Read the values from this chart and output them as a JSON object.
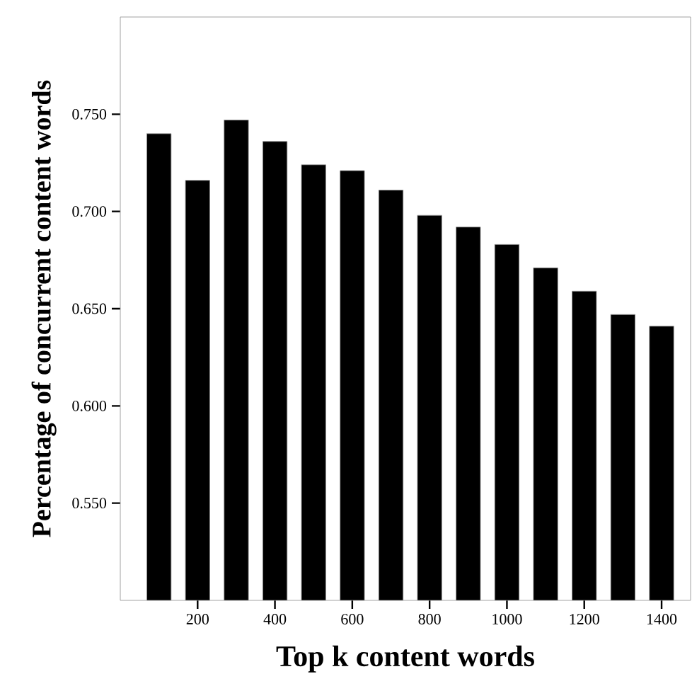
{
  "chart_data": {
    "type": "bar",
    "xlabel": "Top k content words",
    "ylabel": "Percentage of concurrent content words",
    "x": [
      100,
      200,
      300,
      400,
      500,
      600,
      700,
      800,
      900,
      1000,
      1100,
      1200,
      1300,
      1400
    ],
    "values": [
      0.74,
      0.716,
      0.747,
      0.736,
      0.724,
      0.721,
      0.711,
      0.698,
      0.692,
      0.683,
      0.671,
      0.659,
      0.647,
      0.641
    ],
    "color": "#000000",
    "xlim": [
      0,
      1475
    ],
    "xticks": [
      200,
      400,
      600,
      800,
      1000,
      1200,
      1400
    ],
    "ylim": [
      0.5,
      0.8
    ],
    "yticks": [
      {
        "value": 0.55,
        "label": "0.550"
      },
      {
        "value": 0.6,
        "label": "0.600"
      },
      {
        "value": 0.65,
        "label": "0.650"
      },
      {
        "value": 0.7,
        "label": "0.700"
      },
      {
        "value": 0.75,
        "label": "0.750"
      }
    ]
  }
}
